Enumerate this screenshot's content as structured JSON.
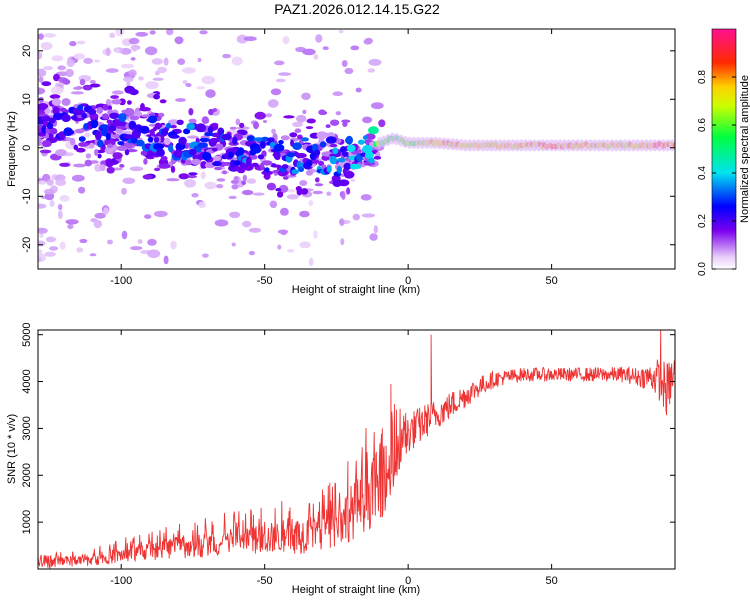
{
  "chart_data": [
    {
      "type": "heatmap",
      "title": "PAZ1.2026.012.14.15.G22",
      "xlabel": "Height of straight line (km)",
      "ylabel": "Frequency (Hz)",
      "xlim": [
        -129,
        93
      ],
      "ylim": [
        -25,
        24.5
      ],
      "xticks": [
        -100,
        -50,
        0,
        50
      ],
      "yticks": [
        -20,
        -10,
        0,
        10,
        20
      ],
      "colorbar": {
        "label": "Normalized spectral amplitude",
        "range": [
          0,
          1
        ],
        "ticks": [
          0,
          0.2,
          0.4,
          0.6,
          0.8
        ],
        "tick_labels": [
          "0.0",
          "0.2",
          "0.4",
          "0.6",
          "0.8"
        ],
        "colormap": "white-purple-blue-cyan-green-yellow-red"
      },
      "ridge": {
        "x": [
          -125,
          -115,
          -105,
          -95,
          -85,
          -75,
          -65,
          -55,
          -45,
          -35,
          -25,
          -15,
          -10,
          -5,
          0,
          5,
          10,
          20,
          30,
          40,
          50,
          60,
          70,
          80,
          90
        ],
        "frequency": [
          6,
          5,
          4,
          3,
          2,
          1,
          0,
          -1,
          -2,
          -1,
          -2,
          -1,
          1,
          2,
          1,
          1,
          1,
          0.5,
          0.5,
          0.5,
          0.5,
          0.5,
          0.5,
          0.5,
          0.5
        ],
        "amplitude": [
          0.2,
          0.25,
          0.25,
          0.3,
          0.3,
          0.3,
          0.3,
          0.3,
          0.3,
          0.3,
          0.35,
          0.35,
          0.6,
          0.55,
          0.6,
          0.65,
          0.75,
          0.75,
          0.7,
          0.75,
          0.8,
          0.75,
          0.7,
          0.75,
          0.85
        ]
      }
    },
    {
      "type": "line",
      "xlabel": "Height of straight line (km)",
      "ylabel": "SNR (10 * v/v)",
      "xlim": [
        -129,
        93
      ],
      "ylim": [
        0,
        5100
      ],
      "xticks": [
        -100,
        -50,
        0,
        50
      ],
      "yticks": [
        1000,
        2000,
        3000,
        4000,
        5000
      ],
      "series": [
        {
          "name": "SNR",
          "color": "#ee3333",
          "x": [
            -129,
            -120,
            -110,
            -100,
            -90,
            -80,
            -70,
            -60,
            -50,
            -40,
            -30,
            -25,
            -20,
            -15,
            -10,
            -5,
            -2,
            0,
            5,
            8,
            10,
            15,
            20,
            25,
            30,
            35,
            40,
            45,
            50,
            55,
            60,
            65,
            70,
            75,
            80,
            85,
            88,
            90,
            93
          ],
          "y": [
            100,
            150,
            200,
            300,
            380,
            460,
            520,
            580,
            640,
            700,
            800,
            950,
            1200,
            1500,
            1800,
            2200,
            2600,
            2900,
            3100,
            3250,
            3300,
            3500,
            3700,
            3900,
            4050,
            4100,
            4150,
            4150,
            4150,
            4150,
            4150,
            4150,
            4150,
            4150,
            4100,
            4100,
            4050,
            3800,
            4200
          ],
          "spread": [
            100,
            110,
            130,
            160,
            200,
            240,
            280,
            300,
            330,
            380,
            450,
            500,
            600,
            700,
            800,
            650,
            550,
            450,
            400,
            350,
            320,
            300,
            260,
            220,
            180,
            160,
            150,
            150,
            150,
            150,
            150,
            160,
            160,
            170,
            200,
            300,
            500,
            600,
            400
          ],
          "spikes": [
            [
              -21,
              2300
            ],
            [
              -16,
              2600
            ],
            [
              -9,
              3000
            ],
            [
              -6,
              3950
            ],
            [
              8,
              5000
            ],
            [
              88,
              5100
            ]
          ]
        }
      ]
    }
  ]
}
